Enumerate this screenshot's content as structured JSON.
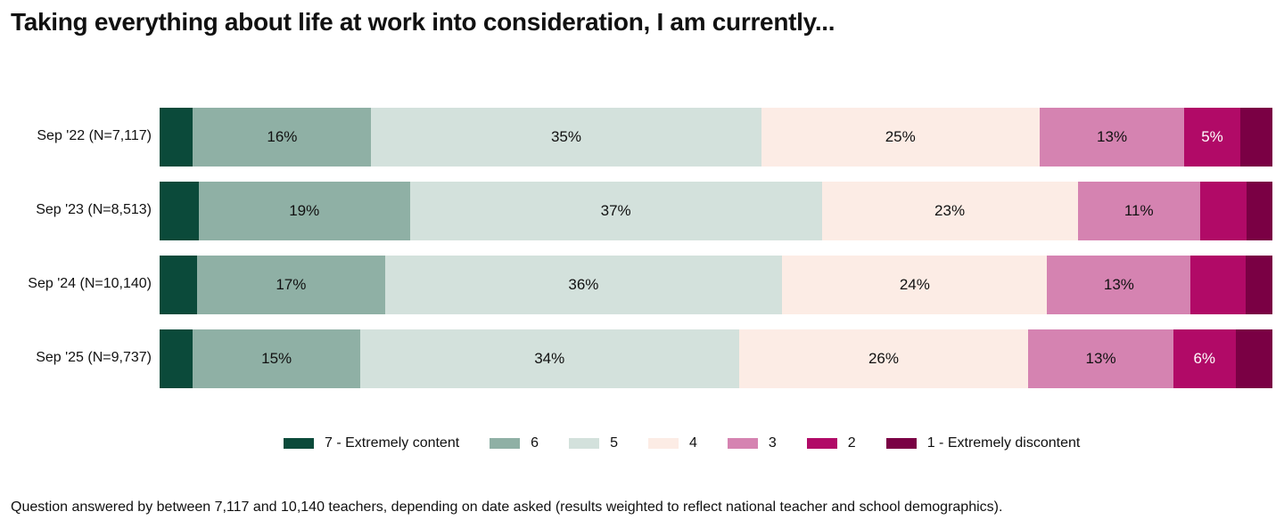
{
  "chart_data": {
    "type": "bar",
    "orientation": "horizontal-stacked-100",
    "title": "Taking everything about life at work into consideration, I am currently...",
    "categories": [
      "Sep '22 (N=7,117)",
      "Sep '23 (N=8,513)",
      "Sep '24 (N=10,140)",
      "Sep '25 (N=9,737)"
    ],
    "series": [
      {
        "name": "7 - Extremely content",
        "color": "#0b4a3a",
        "values": [
          3,
          3.5,
          3.4,
          3
        ],
        "labels": [
          null,
          null,
          null,
          null
        ]
      },
      {
        "name": "6",
        "color": "#8fb0a5",
        "values": [
          16,
          19,
          17,
          15
        ],
        "labels": [
          "16%",
          "19%",
          "17%",
          "15%"
        ]
      },
      {
        "name": "5",
        "color": "#d3e1dc",
        "values": [
          35,
          37,
          36,
          34
        ],
        "labels": [
          "35%",
          "37%",
          "36%",
          "34%"
        ]
      },
      {
        "name": "4",
        "color": "#fcece5",
        "values": [
          25,
          23,
          24,
          26
        ],
        "labels": [
          "25%",
          "23%",
          "24%",
          "26%"
        ]
      },
      {
        "name": "3",
        "color": "#d583b1",
        "values": [
          13,
          11,
          13,
          13
        ],
        "labels": [
          "13%",
          "11%",
          "13%",
          "13%"
        ]
      },
      {
        "name": "2",
        "color": "#b10a67",
        "values": [
          5,
          4.2,
          5,
          5.6
        ],
        "labels": [
          "5%",
          null,
          null,
          "6%"
        ]
      },
      {
        "name": "1 - Extremely discontent",
        "color": "#7a0044",
        "values": [
          2.9,
          2.3,
          2.4,
          3.3
        ],
        "labels": [
          null,
          null,
          null,
          null
        ]
      }
    ],
    "xlim": [
      0,
      100
    ],
    "legend": "bottom-center",
    "footnote": "Question answered by between 7,117 and 10,140 teachers, depending on date asked (results weighted to reflect national teacher and school demographics)."
  }
}
